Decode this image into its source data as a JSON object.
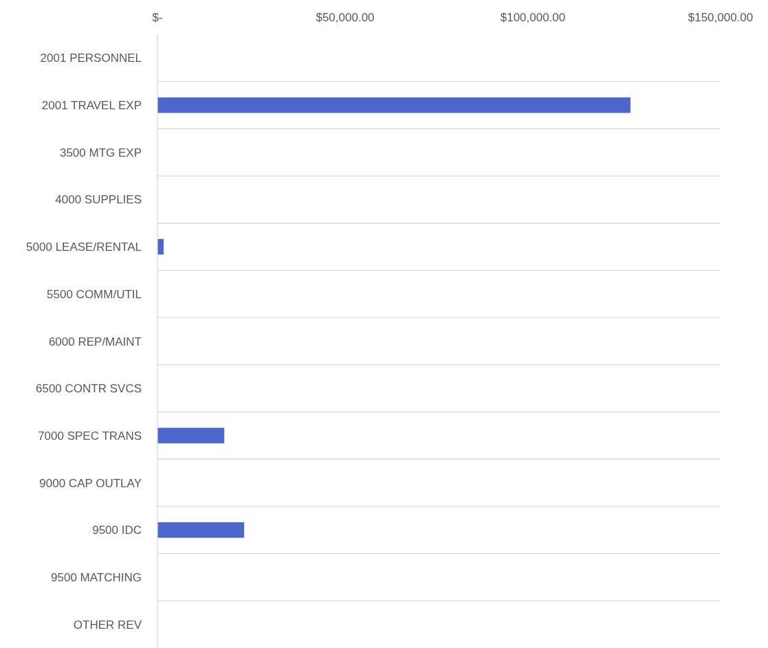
{
  "chart_data": {
    "type": "bar",
    "orientation": "horizontal",
    "categories": [
      "2001 PERSONNEL",
      "2001 TRAVEL EXP",
      "3500 MTG EXP",
      "4000 SUPPLIES",
      "5000 LEASE/RENTAL",
      "5500 COMM/UTIL",
      "6000 REP/MAINT",
      "6500 CONTR SVCS",
      "7000 SPEC TRANS",
      "9000 CAP OUTLAY",
      "9500 IDC",
      "9500 MATCHING",
      "OTHER REV"
    ],
    "values": [
      null,
      126000,
      null,
      null,
      1650,
      null,
      null,
      null,
      17800,
      null,
      23100,
      null,
      null
    ],
    "color": "#4e67cc",
    "xlim": [
      0,
      150000
    ],
    "xticks": [
      {
        "value": 0,
        "label": "$-"
      },
      {
        "value": 50000,
        "label": "$50,000.00"
      },
      {
        "value": 100000,
        "label": "$100,000.00"
      },
      {
        "value": 150000,
        "label": "$150,000.00"
      }
    ],
    "grid": "y"
  }
}
